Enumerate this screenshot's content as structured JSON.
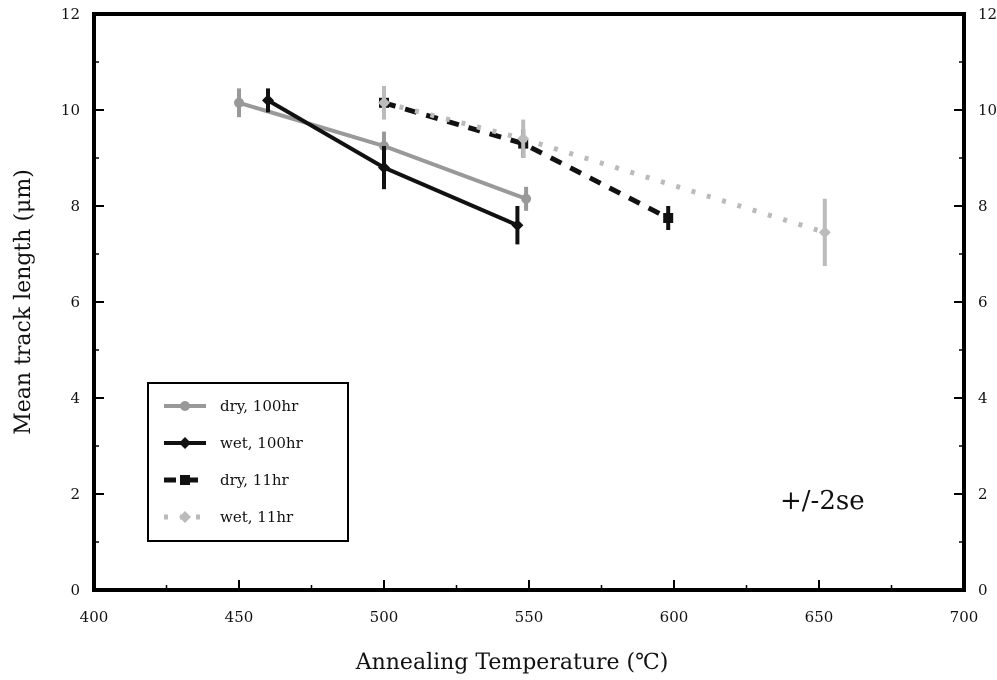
{
  "chart_data": {
    "type": "line",
    "xlabel": "Annealing Temperature (℃)",
    "ylabel": "Mean track length (μm)",
    "xlim": [
      400,
      700
    ],
    "ylim": [
      0,
      12
    ],
    "x_ticks": [
      400,
      450,
      500,
      550,
      600,
      650,
      700
    ],
    "y_ticks": [
      0,
      2,
      4,
      6,
      8,
      10,
      12
    ],
    "grid": false,
    "legend_position": "bottom-left",
    "annotation": "+/-2se",
    "series": [
      {
        "name": "dry, 100hr",
        "color": "#999999",
        "line_style": "solid",
        "marker": "circle",
        "points": [
          {
            "x": 450,
            "y": 10.15,
            "err": 0.3
          },
          {
            "x": 500,
            "y": 9.25,
            "err": 0.3
          },
          {
            "x": 549,
            "y": 8.15,
            "err": 0.25
          }
        ]
      },
      {
        "name": "wet, 100hr",
        "color": "#111111",
        "line_style": "solid",
        "marker": "diamond",
        "points": [
          {
            "x": 460,
            "y": 10.2,
            "err": 0.25
          },
          {
            "x": 500,
            "y": 8.8,
            "err": 0.45
          },
          {
            "x": 546,
            "y": 7.6,
            "err": 0.4
          }
        ]
      },
      {
        "name": "dry, 11hr",
        "color": "#111111",
        "line_style": "dashed",
        "marker": "square",
        "points": [
          {
            "x": 500,
            "y": 10.15,
            "err": 0.3
          },
          {
            "x": 548,
            "y": 9.3,
            "err": 0.3
          },
          {
            "x": 598,
            "y": 7.75,
            "err": 0.25
          }
        ]
      },
      {
        "name": "wet, 11hr",
        "color": "#bbbbbb",
        "line_style": "dotted",
        "marker": "diamond",
        "points": [
          {
            "x": 500,
            "y": 10.15,
            "err": 0.35
          },
          {
            "x": 548,
            "y": 9.4,
            "err": 0.4
          },
          {
            "x": 652,
            "y": 7.45,
            "err": 0.7
          }
        ]
      }
    ]
  }
}
